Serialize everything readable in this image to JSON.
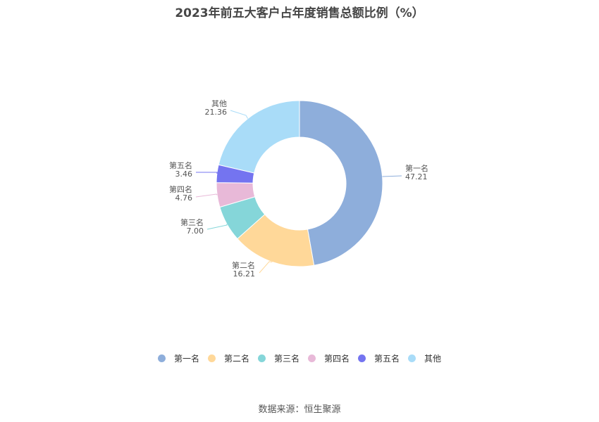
{
  "title": "2023年前五大客户占年度销售总额比例（%）",
  "source": "数据来源：恒生聚源",
  "chart_data": {
    "type": "pie",
    "subtype": "donut",
    "title": "2023年前五大客户占年度销售总额比例（%）",
    "categories": [
      "第一名",
      "第二名",
      "第三名",
      "第四名",
      "第五名",
      "其他"
    ],
    "values": [
      47.21,
      16.21,
      7.0,
      4.76,
      3.46,
      21.36
    ],
    "value_labels": [
      "47.21",
      "16.21",
      "7.00",
      "4.76",
      "3.46",
      "21.36"
    ],
    "colors": [
      "#8eaedb",
      "#ffd899",
      "#85d6d9",
      "#e8b9d8",
      "#7474f0",
      "#a9dcf8"
    ],
    "legend_position": "bottom"
  }
}
